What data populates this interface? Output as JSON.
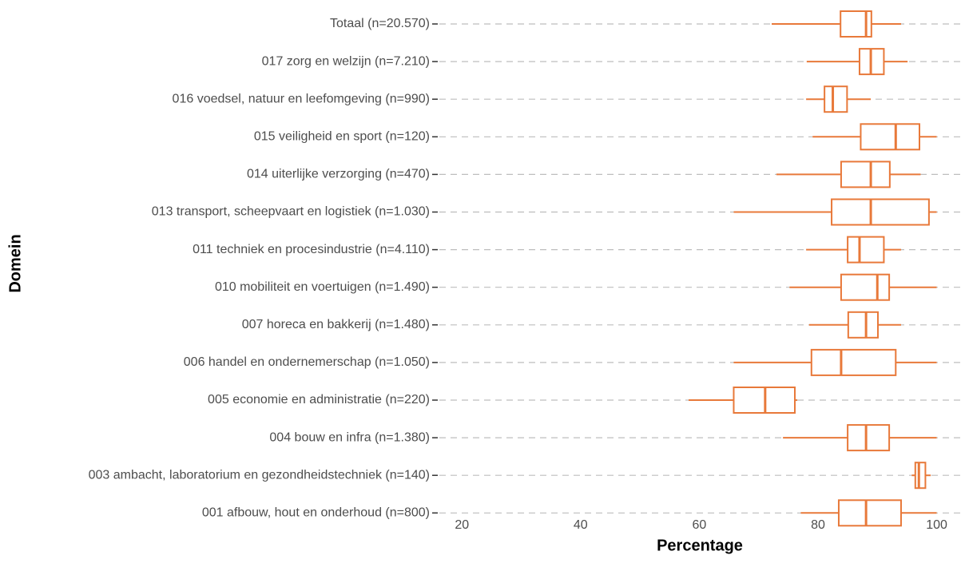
{
  "chart_data": {
    "type": "boxplot",
    "xlabel": "Percentage",
    "ylabel": "Domein",
    "color": "#e8793a",
    "grid": true,
    "categories": [
      "Totaal (n=20.570)",
      "017 zorg en welzijn (n=7.210)",
      "016 voedsel, natuur en leefomgeving (n=990)",
      "015 veiligheid en sport (n=120)",
      "014 uiterlijke verzorging (n=470)",
      "013 transport, scheepvaart en logistiek (n=1.030)",
      "011 techniek en procesindustrie (n=4.110)",
      "010 mobiliteit en voertuigen (n=1.490)",
      "007 horeca en bakkerij (n=1.480)",
      "006 handel en ondernemerschap (n=1.050)",
      "005 economie en administratie (n=220)",
      "004 bouw en infra (n=1.380)",
      "003 ambacht, laboratorium en gezondheidstechniek (n=140)",
      "001 afbouw, hout en onderhoud (n=800)"
    ],
    "low": [
      72.2,
      78.1,
      78.0,
      79.1,
      73.0,
      65.8,
      78.0,
      75.2,
      78.5,
      65.8,
      58.2,
      74.1,
      95.8,
      77.1
    ],
    "q1": [
      83.8,
      87.0,
      81.1,
      87.2,
      83.9,
      82.3,
      85.0,
      83.9,
      85.1,
      78.9,
      65.8,
      85.0,
      96.4,
      83.5
    ],
    "median": [
      88.1,
      88.9,
      82.5,
      93.1,
      88.9,
      88.9,
      87.0,
      90.0,
      88.1,
      83.9,
      71.1,
      88.1,
      97.0,
      88.1
    ],
    "q3": [
      89.0,
      91.1,
      84.9,
      97.1,
      92.1,
      98.7,
      91.1,
      92.0,
      90.1,
      93.1,
      76.1,
      92.0,
      98.1,
      94.0
    ],
    "high": [
      94.0,
      95.1,
      88.9,
      100,
      97.3,
      100,
      94.0,
      100,
      94.0,
      100,
      76.5,
      100,
      99.0,
      100
    ],
    "xlim": [
      16.2,
      104.1
    ],
    "xticks": [
      20,
      40,
      60,
      80,
      100
    ]
  }
}
